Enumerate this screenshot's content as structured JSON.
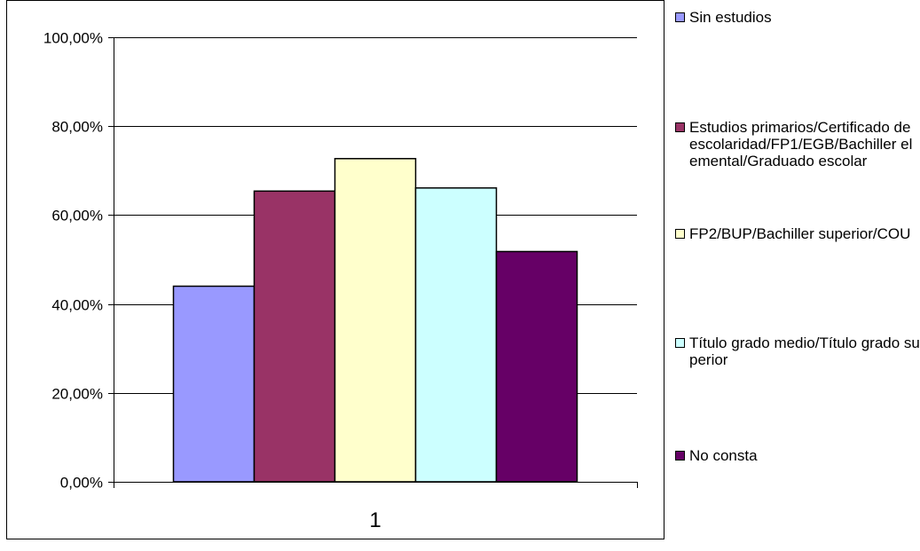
{
  "chart_data": {
    "type": "bar",
    "categories": [
      "1"
    ],
    "series": [
      {
        "name": "Sin estudios",
        "values": [
          0.44
        ],
        "color": "#9999ff"
      },
      {
        "name": "Estudios primarios/Certificado de escolaridad/FP1/EGB/Bachiller elemental/Graduado escolar",
        "values": [
          0.654
        ],
        "color": "#993366"
      },
      {
        "name": "FP2/BUP/Bachiller superior/COU",
        "values": [
          0.727
        ],
        "color": "#ffffcc"
      },
      {
        "name": "Título grado medio/Título grado superior",
        "values": [
          0.661
        ],
        "color": "#ccffff"
      },
      {
        "name": "No consta",
        "values": [
          0.518
        ],
        "color": "#660066"
      }
    ],
    "ylim": [
      0,
      1
    ],
    "yticks": [
      {
        "value": 0,
        "label": "0,00%"
      },
      {
        "value": 0.2,
        "label": "20,00%"
      },
      {
        "value": 0.4,
        "label": "40,00%"
      },
      {
        "value": 0.6,
        "label": "60,00%"
      },
      {
        "value": 0.8,
        "label": "80,00%"
      },
      {
        "value": 1,
        "label": "100,00%"
      }
    ],
    "grid": true,
    "legend_position": "right",
    "title": "",
    "xlabel": "",
    "ylabel": ""
  }
}
